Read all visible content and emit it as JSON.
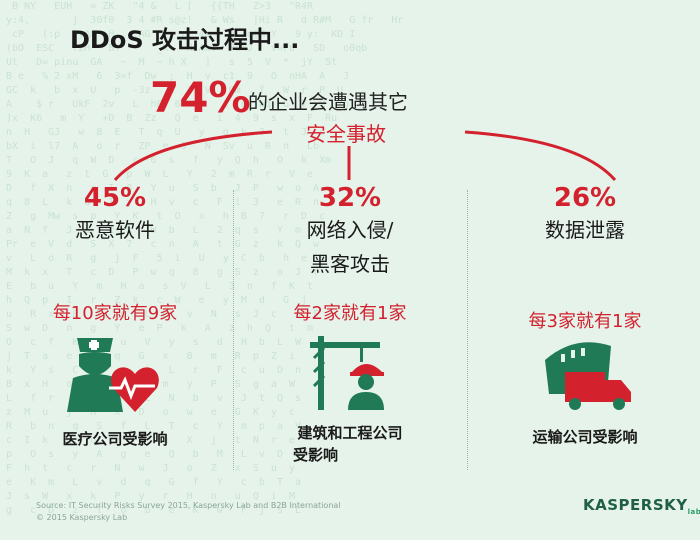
{
  "title": "DDoS 攻击过程中...",
  "headline": {
    "percent": "74%",
    "text": "的企业会遭遇其它",
    "incident": "安全事故"
  },
  "columns": [
    {
      "percent": "45%",
      "category": [
        "恶意软件"
      ],
      "ratio": "每10家就有9家",
      "industry": [
        "医疗公司受影响"
      ],
      "icon": "nurse-heart-icon"
    },
    {
      "percent": "32%",
      "category": [
        "网络入侵/",
        "黑客攻击"
      ],
      "ratio": "每2家就有1家",
      "industry": [
        "建筑和工程公司",
        "受影响"
      ],
      "icon": "crane-worker-icon"
    },
    {
      "percent": "26%",
      "category": [
        "数据泄露"
      ],
      "ratio": "每3家就有1家",
      "industry": [
        "运输公司受影响"
      ],
      "icon": "ship-truck-icon"
    }
  ],
  "footer": {
    "source": "Source: IT Security Risks Survey 2015, Kaspersky Lab and B2B International",
    "copyright": "© 2015 Kaspersky Lab",
    "logo": "KASPERSKY",
    "logo_suffix": "lab"
  },
  "colors": {
    "accent": "#d3212e",
    "icon_green": "#1f7a55",
    "background": "#e6f3ea"
  }
}
